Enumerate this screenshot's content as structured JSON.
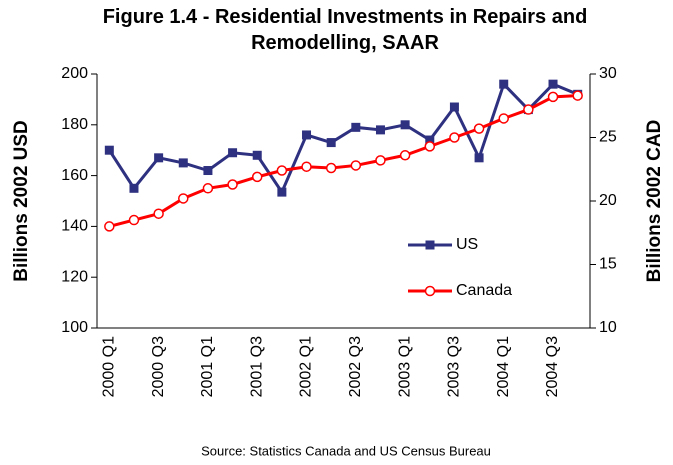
{
  "chart_data": {
    "type": "line",
    "title": "Figure 1.4 - Residential Investments in Repairs and Remodelling, SAAR",
    "y_label": "Billions 2002 USD",
    "y2_label": "Billions 2002 CAD",
    "source": "Source: Statistics Canada and US Census Bureau",
    "categories": [
      "2000 Q1",
      null,
      "2000 Q3",
      null,
      "2001 Q1",
      null,
      "2001 Q3",
      null,
      "2002 Q1",
      null,
      "2002 Q3",
      null,
      "2003 Q1",
      null,
      "2003 Q3",
      null,
      "2004 Q1",
      null,
      "2004 Q3",
      null
    ],
    "series": [
      {
        "name": "US",
        "color": "#2e3080",
        "marker": "square",
        "values": [
          170,
          155,
          167,
          165,
          162,
          169,
          168,
          153.5,
          176,
          173,
          179,
          178,
          180,
          174,
          187,
          167,
          196,
          186,
          196,
          192
        ]
      },
      {
        "name": "Canada",
        "color": "#ff0000",
        "marker": "circle",
        "axis": "y2",
        "values": [
          18,
          18.5,
          19,
          20.2,
          21,
          21.3,
          21.9,
          22.4,
          22.7,
          22.6,
          22.8,
          23.2,
          23.6,
          24.3,
          25,
          25.7,
          26.5,
          27.2,
          28.2,
          28.3
        ]
      }
    ],
    "ylim": [
      100,
      200
    ],
    "yticks": [
      100,
      120,
      140,
      160,
      180,
      200
    ],
    "y2lim": [
      10,
      30
    ],
    "y2ticks": [
      10,
      15,
      20,
      25,
      30
    ],
    "grid": false,
    "legend": "right"
  }
}
